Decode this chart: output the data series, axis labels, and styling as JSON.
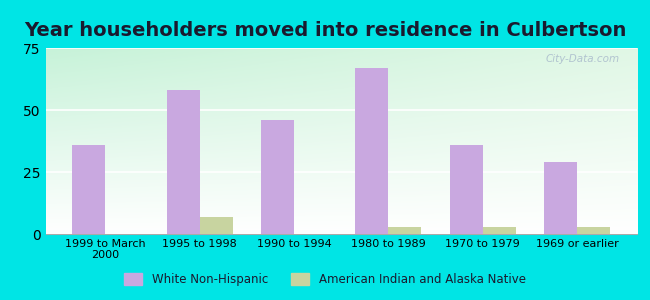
{
  "title": "Year householders moved into residence in Culbertson",
  "categories": [
    "1999 to March\n2000",
    "1995 to 1998",
    "1990 to 1994",
    "1980 to 1989",
    "1970 to 1979",
    "1969 or earlier"
  ],
  "white_non_hispanic": [
    36,
    58,
    46,
    67,
    36,
    29
  ],
  "american_indian": [
    0,
    7,
    0,
    3,
    3,
    3
  ],
  "white_color": "#c9a8e0",
  "indian_color": "#c8d4a0",
  "bg_color": "#00e5e5",
  "ylim": [
    0,
    75
  ],
  "yticks": [
    0,
    25,
    50,
    75
  ],
  "bar_width": 0.35,
  "title_fontsize": 14,
  "legend_labels": [
    "White Non-Hispanic",
    "American Indian and Alaska Native"
  ],
  "watermark": "City-Data.com"
}
